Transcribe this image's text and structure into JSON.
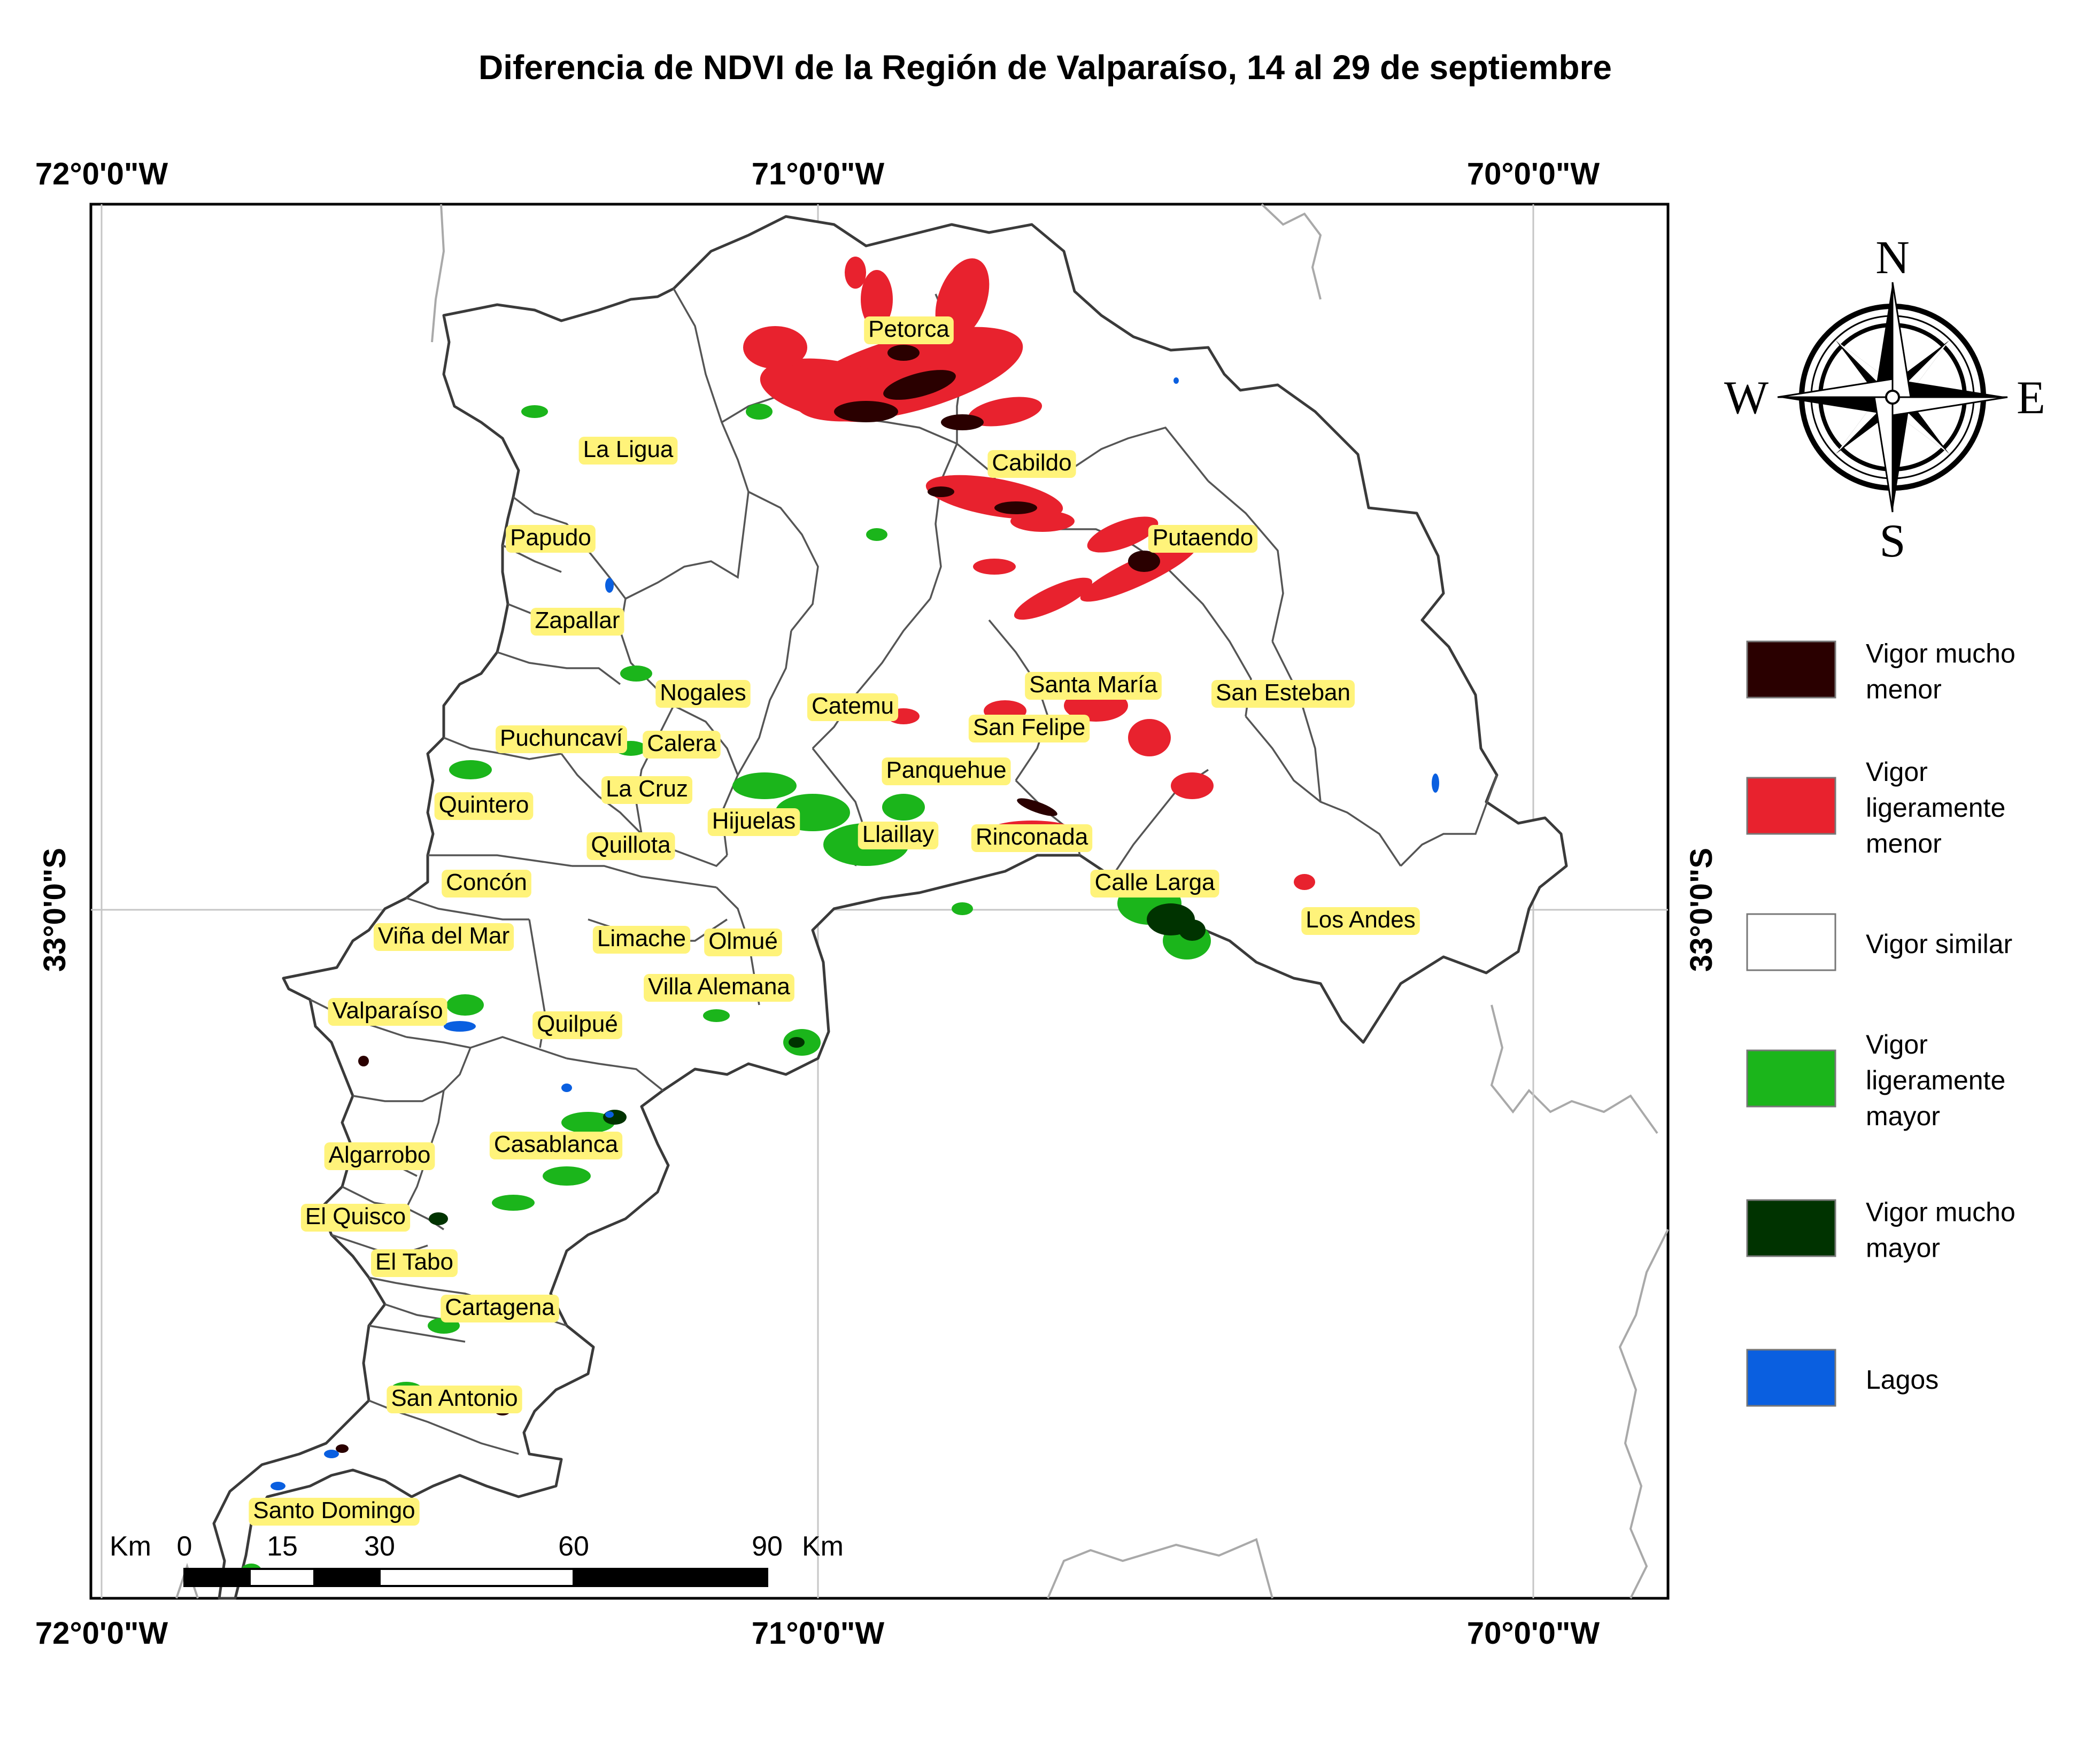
{
  "title": "Diferencia de NDVI de la Región de Valparaíso, 14 al 29 de septiembre",
  "graticule": {
    "lon_labels": [
      "72°0'0\"W",
      "71°0'0\"W",
      "70°0'0\"W"
    ],
    "lat_label": "33°0'0\"S"
  },
  "places": [
    "Petorca",
    "La Ligua",
    "Cabildo",
    "Papudo",
    "Putaendo",
    "Zapallar",
    "Nogales",
    "Catemu",
    "Santa María",
    "San Esteban",
    "San Felipe",
    "Puchuncaví",
    "Calera",
    "Panquehue",
    "La Cruz",
    "Quintero",
    "Hijuelas",
    "Llaillay",
    "Rinconada",
    "Quillota",
    "Concón",
    "Calle Larga",
    "Los Andes",
    "Viña del Mar",
    "Limache",
    "Olmué",
    "Villa Alemana",
    "Valparaíso",
    "Quilpué",
    "Casablanca",
    "Algarrobo",
    "El Quisco",
    "El Tabo",
    "Cartagena",
    "San Antonio",
    "Santo Domingo"
  ],
  "compass": {
    "n": "N",
    "s": "S",
    "e": "E",
    "w": "W"
  },
  "legend": [
    {
      "lines": [
        "Vigor mucho",
        "menor"
      ],
      "color": "#2a0000"
    },
    {
      "lines": [
        "Vigor",
        "ligeramente",
        "menor"
      ],
      "color": "#e8222e"
    },
    {
      "lines": [
        "Vigor similar"
      ],
      "color": "#ffffff"
    },
    {
      "lines": [
        "Vigor",
        "ligeramente",
        "mayor"
      ],
      "color": "#1bb51b"
    },
    {
      "lines": [
        "Vigor mucho",
        "mayor"
      ],
      "color": "#003300"
    },
    {
      "lines": [
        "Lagos"
      ],
      "color": "#0a5fe0"
    }
  ],
  "scale_bar": {
    "unit_left": "Km",
    "ticks": [
      "0",
      "15",
      "30",
      "60",
      "90"
    ],
    "unit_right": "Km"
  }
}
